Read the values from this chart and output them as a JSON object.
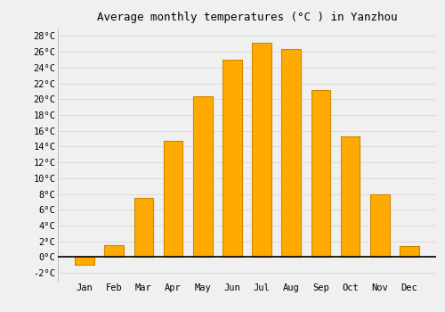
{
  "title": "Average monthly temperatures (°C ) in Yanzhou",
  "months": [
    "Jan",
    "Feb",
    "Mar",
    "Apr",
    "May",
    "Jun",
    "Jul",
    "Aug",
    "Sep",
    "Oct",
    "Nov",
    "Dec"
  ],
  "values": [
    -1.0,
    1.5,
    7.5,
    14.7,
    20.4,
    25.0,
    27.1,
    26.3,
    21.2,
    15.3,
    8.0,
    1.4
  ],
  "bar_color": "#FFAA00",
  "bar_edge_color": "#CC8800",
  "ylim": [
    -3,
    29
  ],
  "yticks": [
    -2,
    0,
    2,
    4,
    6,
    8,
    10,
    12,
    14,
    16,
    18,
    20,
    22,
    24,
    26,
    28
  ],
  "ytick_labels": [
    "-2°C",
    "0°C",
    "2°C",
    "4°C",
    "6°C",
    "8°C",
    "10°C",
    "12°C",
    "14°C",
    "16°C",
    "18°C",
    "20°C",
    "22°C",
    "24°C",
    "26°C",
    "28°C"
  ],
  "background_color": "#f0f0f0",
  "grid_color": "#d8d8d8",
  "title_fontsize": 9,
  "tick_fontsize": 7.5,
  "bar_width": 0.65
}
